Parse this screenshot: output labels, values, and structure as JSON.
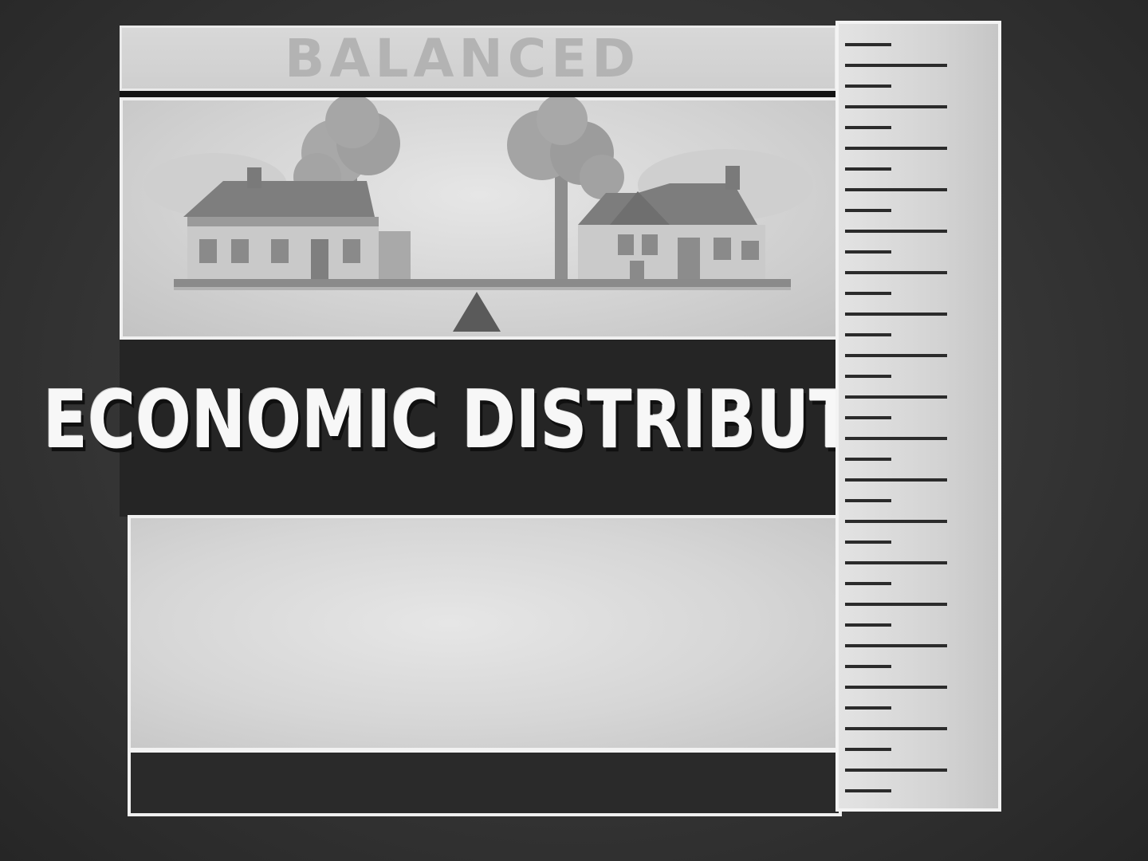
{
  "top_label": {
    "text": "BALANCED"
  },
  "title": {
    "text": "ECONOMIC DISTRIBUTION"
  },
  "scene": {
    "left_house": "house-icon",
    "right_house": "house-icon",
    "trees": "tree-icon",
    "seesaw": "balance-scale-icon",
    "fulcrum": "fulcrum-icon"
  },
  "ruler": {
    "icon": "ruler-scale-icon"
  },
  "colors": {
    "background": "#353535",
    "panel": "#d6d6d6",
    "title_text": "#f7f7f7",
    "label_text": "#b3b3b3"
  }
}
